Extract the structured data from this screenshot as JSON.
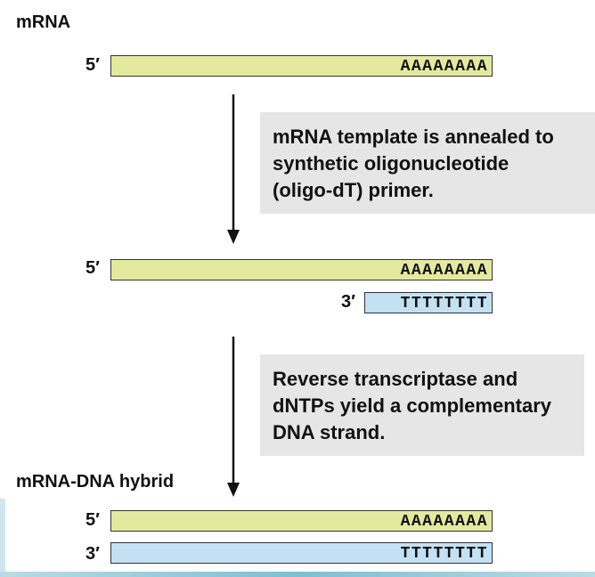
{
  "labels": {
    "mrna_title": "mRNA",
    "hybrid_title": "mRNA-DNA hybrid"
  },
  "ends": {
    "five_prime": "5′",
    "three_prime": "3′"
  },
  "sequences": {
    "poly_a": "AAAAAAAA",
    "oligo_dt": "TTTTTTTT"
  },
  "steps": [
    {
      "text": "mRNA template is annealed to\nsynthetic oligonucleotide\n(oligo-dT) primer."
    },
    {
      "text": "Reverse transcriptase and\ndNTPs yield a complementary\nDNA strand."
    }
  ],
  "colors": {
    "rna_strand": "#e3ea9e",
    "dna_strand": "#c3e1f3",
    "note_box": "#e6e6e6"
  }
}
